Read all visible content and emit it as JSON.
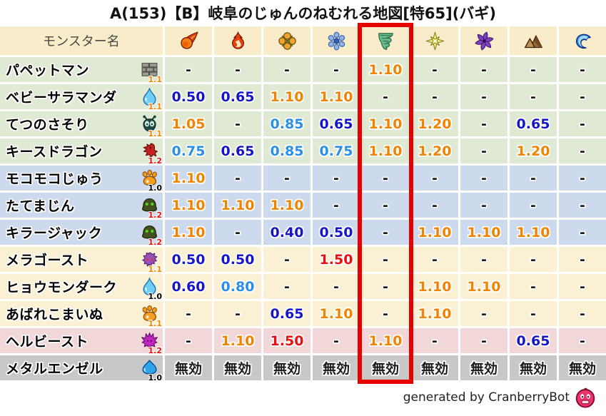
{
  "title": "A(153)【B】岐阜のじゅんのねむれる地図[特65](バギ)",
  "highlight": {
    "column_index": 4,
    "color": "#e60000"
  },
  "table": {
    "name_header": "モンスター名",
    "element_columns": [
      {
        "icon": "fireball-icon"
      },
      {
        "icon": "flame-icon"
      },
      {
        "icon": "explosion-icon"
      },
      {
        "icon": "snowflake-icon"
      },
      {
        "icon": "tornado-icon"
      },
      {
        "icon": "starburst-icon"
      },
      {
        "icon": "pinwheel-icon"
      },
      {
        "icon": "mountain-icon"
      },
      {
        "icon": "wave-icon"
      }
    ],
    "rows": [
      {
        "name": "パペットマン",
        "icon": "brick-wall-icon",
        "multiplier": "1.1",
        "group": "green",
        "values": [
          "-",
          "-",
          "-",
          "-",
          "1.10",
          "-",
          "-",
          "-",
          "-"
        ]
      },
      {
        "name": "ベビーサラマンダ",
        "icon": "water-drop-icon",
        "multiplier": "1.1",
        "group": "green",
        "values": [
          "0.50",
          "0.65",
          "1.10",
          "1.10",
          "-",
          "-",
          "-",
          "-",
          "-"
        ]
      },
      {
        "name": "てつのさそり",
        "icon": "insect-icon",
        "multiplier": "1.1",
        "group": "green",
        "values": [
          "1.05",
          "-",
          "0.85",
          "0.65",
          "1.10",
          "1.20",
          "-",
          "0.65",
          "-"
        ]
      },
      {
        "name": "キースドラゴン",
        "icon": "dragon-icon",
        "multiplier": "1.2",
        "group": "green",
        "values": [
          "0.75",
          "0.65",
          "0.85",
          "0.75",
          "1.10",
          "1.20",
          "-",
          "1.20",
          "-"
        ]
      },
      {
        "name": "モコモコじゅう",
        "icon": "paw-icon",
        "multiplier": "1.0",
        "group": "blue",
        "values": [
          "1.10",
          "-",
          "-",
          "-",
          "-",
          "-",
          "-",
          "-",
          "-"
        ]
      },
      {
        "name": "たてまじん",
        "icon": "golem-icon",
        "multiplier": "1.2",
        "group": "blue",
        "values": [
          "1.10",
          "1.10",
          "1.10",
          "-",
          "-",
          "-",
          "-",
          "-",
          "-"
        ]
      },
      {
        "name": "キラージャック",
        "icon": "golem-icon",
        "multiplier": "1.2",
        "group": "blue",
        "values": [
          "1.10",
          "-",
          "0.40",
          "0.50",
          "-",
          "1.10",
          "1.10",
          "1.10",
          "-"
        ]
      },
      {
        "name": "メラゴースト",
        "icon": "ghost-icon",
        "multiplier": "1.1",
        "group": "cream",
        "values": [
          "0.50",
          "0.50",
          "-",
          "1.50",
          "-",
          "-",
          "-",
          "-",
          "-"
        ]
      },
      {
        "name": "ヒョウモンダーク",
        "icon": "water-drop-icon",
        "multiplier": "1.0",
        "group": "cream",
        "values": [
          "0.60",
          "0.80",
          "-",
          "-",
          "-",
          "1.10",
          "1.10",
          "-",
          "-"
        ]
      },
      {
        "name": "あばれこまいぬ",
        "icon": "paw-icon",
        "multiplier": "1.1",
        "group": "cream",
        "values": [
          "-",
          "-",
          "0.65",
          "1.10",
          "-",
          "1.10",
          "-",
          "-",
          "-"
        ]
      },
      {
        "name": "ヘルビースト",
        "icon": "demon-icon",
        "multiplier": "1.2",
        "group": "pink",
        "values": [
          "-",
          "1.10",
          "1.50",
          "-",
          "1.10",
          "-",
          "-",
          "0.65",
          "-"
        ]
      },
      {
        "name": "メタルエンゼル",
        "icon": "slime-icon",
        "multiplier": "1.0",
        "group": "gray",
        "values": [
          "無効",
          "無効",
          "無効",
          "無効",
          "無効",
          "無効",
          "無効",
          "無効",
          "無効"
        ]
      }
    ]
  },
  "footer": {
    "credit": "generated by CranberryBot",
    "icon": "cranberry-bot-icon"
  },
  "colors": {
    "header_bg": "#f8ecca",
    "group_green": "#dfe9d4",
    "group_blue": "#cdd9ec",
    "group_cream": "#faf0d3",
    "group_pink": "#f2d7d8",
    "group_gray": "#c8c8c8",
    "value_low": "#1616c8",
    "value_mid": "#2b8fe8",
    "value_high": "#f08300",
    "value_weak": "#e81010",
    "highlight": "#e60000"
  },
  "chart_data": {
    "type": "table",
    "title": "A(153)【B】岐阜のじゅんのねむれる地図[特65](バギ)",
    "columns": [
      "モンスター名",
      "fireball",
      "flame",
      "explosion",
      "snowflake",
      "tornado",
      "starburst",
      "pinwheel",
      "mountain",
      "wave"
    ],
    "highlighted_column": "tornado",
    "rows": [
      [
        "パペットマン",
        "-",
        "-",
        "-",
        "-",
        "1.10",
        "-",
        "-",
        "-",
        "-"
      ],
      [
        "ベビーサラマンダ",
        "0.50",
        "0.65",
        "1.10",
        "1.10",
        "-",
        "-",
        "-",
        "-",
        "-"
      ],
      [
        "てつのさそり",
        "1.05",
        "-",
        "0.85",
        "0.65",
        "1.10",
        "1.20",
        "-",
        "0.65",
        "-"
      ],
      [
        "キースドラゴン",
        "0.75",
        "0.65",
        "0.85",
        "0.75",
        "1.10",
        "1.20",
        "-",
        "1.20",
        "-"
      ],
      [
        "モコモコじゅう",
        "1.10",
        "-",
        "-",
        "-",
        "-",
        "-",
        "-",
        "-",
        "-"
      ],
      [
        "たてまじん",
        "1.10",
        "1.10",
        "1.10",
        "-",
        "-",
        "-",
        "-",
        "-",
        "-"
      ],
      [
        "キラージャック",
        "1.10",
        "-",
        "0.40",
        "0.50",
        "-",
        "1.10",
        "1.10",
        "1.10",
        "-"
      ],
      [
        "メラゴースト",
        "0.50",
        "0.50",
        "-",
        "1.50",
        "-",
        "-",
        "-",
        "-",
        "-"
      ],
      [
        "ヒョウモンダーク",
        "0.60",
        "0.80",
        "-",
        "-",
        "-",
        "1.10",
        "1.10",
        "-",
        "-"
      ],
      [
        "あばれこまいぬ",
        "-",
        "-",
        "0.65",
        "1.10",
        "-",
        "1.10",
        "-",
        "-",
        "-"
      ],
      [
        "ヘルビースト",
        "-",
        "1.10",
        "1.50",
        "-",
        "1.10",
        "-",
        "-",
        "0.65",
        "-"
      ],
      [
        "メタルエンゼル",
        "無効",
        "無効",
        "無効",
        "無効",
        "無効",
        "無効",
        "無効",
        "無効",
        "無効"
      ]
    ]
  }
}
